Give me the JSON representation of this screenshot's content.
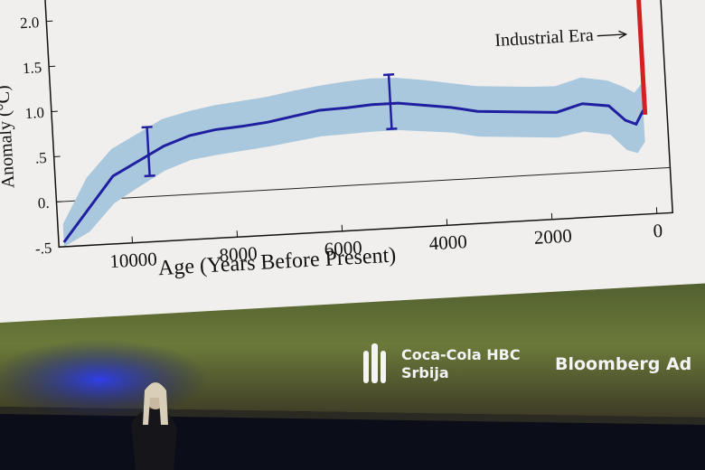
{
  "chart_data": {
    "type": "line",
    "x_label": "Age (Years Before Present)",
    "y_label": "Anomaly (°C)",
    "x": [
      11300,
      10800,
      10300,
      9800,
      9300,
      8800,
      8300,
      7800,
      7300,
      6800,
      6300,
      5800,
      5300,
      4800,
      4300,
      3800,
      3300,
      2800,
      2300,
      1800,
      1300,
      800,
      500,
      300,
      150
    ],
    "values": [
      -0.45,
      -0.1,
      0.25,
      0.4,
      0.55,
      0.65,
      0.7,
      0.72,
      0.75,
      0.8,
      0.85,
      0.86,
      0.88,
      0.88,
      0.84,
      0.8,
      0.74,
      0.72,
      0.7,
      0.68,
      0.76,
      0.72,
      0.55,
      0.5,
      0.65
    ],
    "band_upper": [
      -0.25,
      0.25,
      0.55,
      0.7,
      0.85,
      0.92,
      0.97,
      1.0,
      1.03,
      1.08,
      1.12,
      1.15,
      1.17,
      1.16,
      1.12,
      1.07,
      1.02,
      1.0,
      0.98,
      0.97,
      1.05,
      1.0,
      0.92,
      0.85,
      0.95
    ],
    "band_lower": [
      -0.5,
      -0.35,
      -0.05,
      0.12,
      0.28,
      0.38,
      0.42,
      0.45,
      0.48,
      0.52,
      0.56,
      0.57,
      0.58,
      0.58,
      0.55,
      0.52,
      0.46,
      0.44,
      0.42,
      0.4,
      0.45,
      0.4,
      0.22,
      0.18,
      0.3
    ],
    "color": "#1f1fa0",
    "band_color": "#a9c8dd",
    "error_bars": [
      {
        "x": 9600,
        "value": 0.5,
        "error": 0.27
      },
      {
        "x": 4950,
        "value": 0.9,
        "error": 0.3
      }
    ],
    "xlim": [
      11400,
      -300
    ],
    "xticks": [
      10000,
      8000,
      6000,
      4000,
      2000,
      0
    ],
    "ylim": [
      -0.5,
      2.0
    ],
    "yticks": [
      {
        "value": -0.5,
        "label": "-.5"
      },
      {
        "value": 0,
        "label": "0."
      },
      {
        "value": 0.5,
        "label": ".5"
      },
      {
        "value": 1.0,
        "label": "1.0"
      },
      {
        "value": 1.5,
        "label": "1.5"
      },
      {
        "value": 2.0,
        "label": "2.0"
      }
    ],
    "zero_line": true,
    "annotation": {
      "text": "Industrial Era",
      "x": 120,
      "color": "#d42020"
    }
  },
  "footer": {
    "sponsor_1": "Coca-Cola HBC",
    "sponsor_1_sub": "Srbija",
    "sponsor_2": "Bloomberg Ad"
  }
}
